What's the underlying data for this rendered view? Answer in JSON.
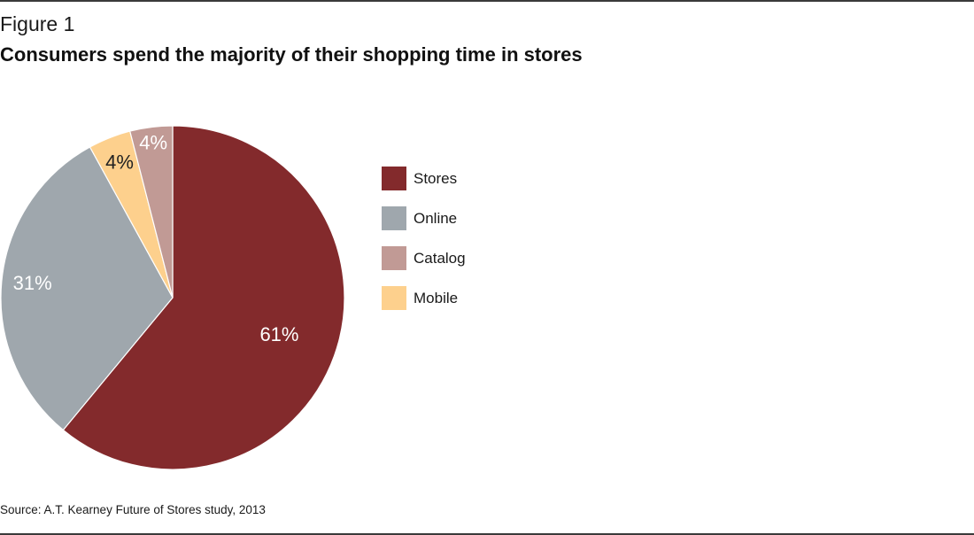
{
  "figure_label": "Figure 1",
  "source": "Source: A.T. Kearney Future of Stores study, 2013",
  "chart_data": {
    "type": "pie",
    "title": "Consumers spend the majority of their shopping time in stores",
    "legend_position": "right",
    "slices": [
      {
        "name": "Stores",
        "value": 61,
        "label": "61%",
        "color": "#832a2c"
      },
      {
        "name": "Online",
        "value": 31,
        "label": "31%",
        "color": "#9fa7ad"
      },
      {
        "name": "Mobile",
        "value": 4,
        "label": "4%",
        "color": "#fdd08d"
      },
      {
        "name": "Catalog",
        "value": 4,
        "label": "4%",
        "color": "#c19a95"
      }
    ],
    "legend": [
      {
        "label": "Stores",
        "color": "#832a2c"
      },
      {
        "label": "Online",
        "color": "#9fa7ad"
      },
      {
        "label": "Catalog",
        "color": "#c19a95"
      },
      {
        "label": "Mobile",
        "color": "#fdd08d"
      }
    ]
  }
}
